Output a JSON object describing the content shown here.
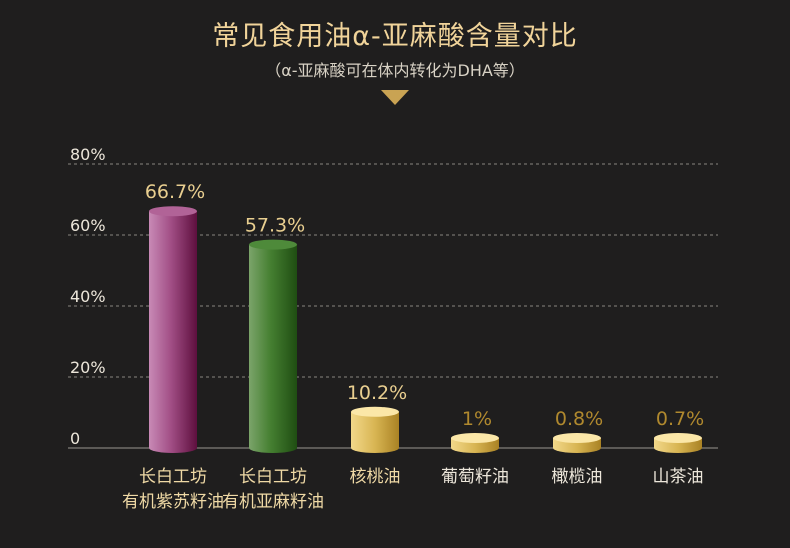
{
  "header": {
    "title": "常见食用油α-亚麻酸含量对比",
    "subtitle": "（α-亚麻酸可在体内转化为DHA等）"
  },
  "chart_data": {
    "type": "bar",
    "title": "常见食用油α-亚麻酸含量对比",
    "subtitle": "（α-亚麻酸可在体内转化为DHA等）",
    "ylabel": "",
    "xlabel": "",
    "ylim": [
      0,
      80
    ],
    "yticks": [
      {
        "value": 0,
        "label": "0"
      },
      {
        "value": 20,
        "label": "20%"
      },
      {
        "value": 40,
        "label": "40%"
      },
      {
        "value": 60,
        "label": "60%"
      },
      {
        "value": 80,
        "label": "80%"
      }
    ],
    "grid": true,
    "categories": [
      [
        "长白工坊",
        "有机紫苏籽油"
      ],
      [
        "长白工坊",
        "有机亚麻籽油"
      ],
      [
        "核桃油"
      ],
      [
        "葡萄籽油"
      ],
      [
        "橄榄油"
      ],
      [
        "山茶油"
      ]
    ],
    "values": [
      66.7,
      57.3,
      10.2,
      1,
      0.8,
      0.7
    ],
    "value_labels": [
      "66.7%",
      "57.3%",
      "10.2%",
      "1%",
      "0.8%",
      "0.7%"
    ],
    "colors": {
      "purple": "#9b3d78",
      "green": "#3f7a2c",
      "gold": "#d6b34f",
      "title": "#f1d49a"
    }
  }
}
